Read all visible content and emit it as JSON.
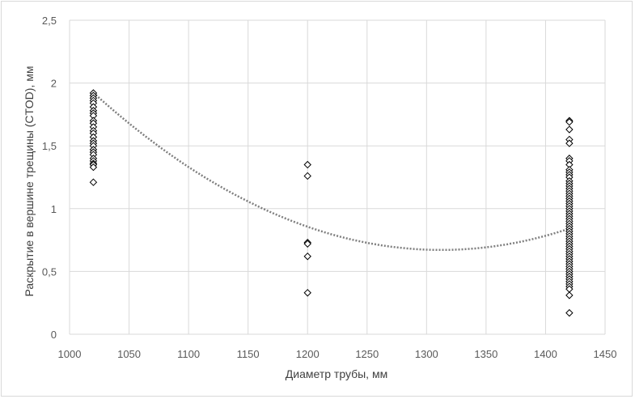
{
  "chart_data": {
    "type": "scatter",
    "title": "",
    "xlabel": "Диаметр трубы, мм",
    "ylabel": "Раскрытие в вершине трещины (CTOD), мм",
    "xlim": [
      1000,
      1450
    ],
    "ylim": [
      0,
      2.5
    ],
    "x_ticks": [
      1000,
      1050,
      1100,
      1150,
      1200,
      1250,
      1300,
      1350,
      1400,
      1450
    ],
    "y_ticks": [
      0,
      0.5,
      1,
      1.5,
      2,
      2.5
    ],
    "x_tick_labels": [
      "1000",
      "1050",
      "1100",
      "1150",
      "1200",
      "1250",
      "1300",
      "1350",
      "1400",
      "1450"
    ],
    "y_tick_labels": [
      "0",
      "0,5",
      "1",
      "1,5",
      "2",
      "2,5"
    ],
    "grid": true,
    "marker": "diamond-open",
    "marker_color": "#000000",
    "trendline": {
      "type": "polynomial-2",
      "style": "dotted",
      "color": "#7f7f7f",
      "x_range": [
        1020,
        1420
      ],
      "coefficients": [
        1.465e-05,
        -0.03845,
        25.9
      ]
    },
    "series": [
      {
        "points": [
          [
            1020,
            1.92
          ],
          [
            1020,
            1.9
          ],
          [
            1020,
            1.88
          ],
          [
            1020,
            1.86
          ],
          [
            1020,
            1.84
          ],
          [
            1020,
            1.81
          ],
          [
            1020,
            1.78
          ],
          [
            1020,
            1.76
          ],
          [
            1020,
            1.74
          ],
          [
            1020,
            1.7
          ],
          [
            1020,
            1.68
          ],
          [
            1020,
            1.65
          ],
          [
            1020,
            1.62
          ],
          [
            1020,
            1.6
          ],
          [
            1020,
            1.57
          ],
          [
            1020,
            1.54
          ],
          [
            1020,
            1.52
          ],
          [
            1020,
            1.5
          ],
          [
            1020,
            1.47
          ],
          [
            1020,
            1.45
          ],
          [
            1020,
            1.43
          ],
          [
            1020,
            1.4
          ],
          [
            1020,
            1.38
          ],
          [
            1020,
            1.36
          ],
          [
            1020,
            1.35
          ],
          [
            1020,
            1.33
          ],
          [
            1020,
            1.21
          ],
          [
            1200,
            1.35
          ],
          [
            1200,
            1.26
          ],
          [
            1200,
            0.73
          ],
          [
            1200,
            0.72
          ],
          [
            1200,
            0.62
          ],
          [
            1200,
            0.33
          ],
          [
            1420,
            1.7
          ],
          [
            1420,
            1.69
          ],
          [
            1420,
            1.63
          ],
          [
            1420,
            1.55
          ],
          [
            1420,
            1.52
          ],
          [
            1420,
            1.4
          ],
          [
            1420,
            1.38
          ],
          [
            1420,
            1.35
          ],
          [
            1420,
            1.31
          ],
          [
            1420,
            1.29
          ],
          [
            1420,
            1.27
          ],
          [
            1420,
            1.25
          ],
          [
            1420,
            1.22
          ],
          [
            1420,
            1.2
          ],
          [
            1420,
            1.18
          ],
          [
            1420,
            1.16
          ],
          [
            1420,
            1.14
          ],
          [
            1420,
            1.12
          ],
          [
            1420,
            1.1
          ],
          [
            1420,
            1.08
          ],
          [
            1420,
            1.06
          ],
          [
            1420,
            1.04
          ],
          [
            1420,
            1.02
          ],
          [
            1420,
            1.0
          ],
          [
            1420,
            0.98
          ],
          [
            1420,
            0.96
          ],
          [
            1420,
            0.94
          ],
          [
            1420,
            0.92
          ],
          [
            1420,
            0.9
          ],
          [
            1420,
            0.88
          ],
          [
            1420,
            0.86
          ],
          [
            1420,
            0.84
          ],
          [
            1420,
            0.82
          ],
          [
            1420,
            0.8
          ],
          [
            1420,
            0.78
          ],
          [
            1420,
            0.76
          ],
          [
            1420,
            0.74
          ],
          [
            1420,
            0.72
          ],
          [
            1420,
            0.7
          ],
          [
            1420,
            0.68
          ],
          [
            1420,
            0.66
          ],
          [
            1420,
            0.64
          ],
          [
            1420,
            0.62
          ],
          [
            1420,
            0.6
          ],
          [
            1420,
            0.58
          ],
          [
            1420,
            0.56
          ],
          [
            1420,
            0.54
          ],
          [
            1420,
            0.52
          ],
          [
            1420,
            0.5
          ],
          [
            1420,
            0.48
          ],
          [
            1420,
            0.46
          ],
          [
            1420,
            0.44
          ],
          [
            1420,
            0.42
          ],
          [
            1420,
            0.4
          ],
          [
            1420,
            0.38
          ],
          [
            1420,
            0.36
          ],
          [
            1420,
            0.31
          ],
          [
            1420,
            0.17
          ]
        ]
      }
    ]
  }
}
